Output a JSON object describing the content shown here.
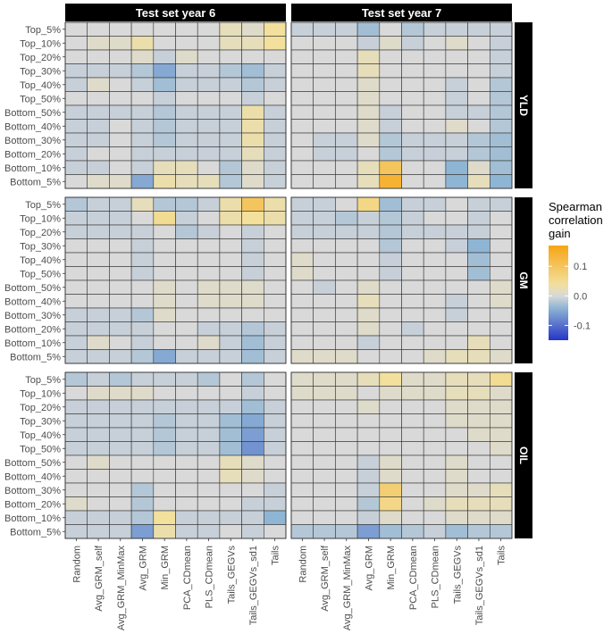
{
  "chart_data": {
    "type": "heatmap",
    "title": "",
    "columns": [
      "Test set year 6",
      "Test set year 7"
    ],
    "rows": [
      "YLD",
      "GM",
      "OIL"
    ],
    "x_categories": [
      "Random",
      "Avg_GRM_self",
      "Avg_GRM_MinMax",
      "Avg_GRM",
      "Min_GRM",
      "PCA_CDmean",
      "PLS_CDmean",
      "Tails_GEGVs",
      "Tails_GEGVs_sd1",
      "Tails"
    ],
    "y_categories": [
      "Top_5%",
      "Top_10%",
      "Top_20%",
      "Top_30%",
      "Top_40%",
      "Top_50%",
      "Bottom_50%",
      "Bottom_40%",
      "Bottom_30%",
      "Bottom_20%",
      "Bottom_10%",
      "Bottom_5%"
    ],
    "legend": {
      "title_lines": [
        "Spearman",
        "correlation",
        "gain"
      ],
      "ticks": [
        "0.1",
        "0.0",
        "-0.1"
      ],
      "range": [
        -0.15,
        0.17
      ],
      "colors": {
        "low": "#2535c7",
        "mid_low": "#8fb5d4",
        "mid": "#d9d9d9",
        "mid_high": "#f2e09c",
        "high": "#f7a514"
      }
    },
    "panels": [
      {
        "column": "Test set year 6",
        "row": "YLD",
        "values": [
          [
            0.0,
            0.0,
            0.0,
            0.0,
            0.0,
            0.0,
            0.0,
            0.02,
            0.01,
            0.04
          ],
          [
            0.0,
            0.01,
            0.01,
            0.03,
            0.0,
            0.0,
            0.0,
            0.02,
            0.02,
            0.04
          ],
          [
            0.0,
            0.0,
            0.0,
            0.01,
            -0.01,
            0.01,
            0.0,
            0.0,
            0.0,
            0.0
          ],
          [
            -0.01,
            -0.01,
            -0.01,
            -0.02,
            -0.05,
            -0.01,
            -0.01,
            -0.02,
            -0.03,
            -0.01
          ],
          [
            -0.01,
            0.01,
            0.0,
            -0.01,
            -0.03,
            -0.01,
            -0.01,
            -0.01,
            -0.02,
            -0.01
          ],
          [
            0.0,
            0.0,
            0.0,
            0.0,
            -0.01,
            0.0,
            0.0,
            0.0,
            -0.01,
            0.0
          ],
          [
            -0.01,
            -0.01,
            -0.01,
            -0.01,
            -0.02,
            -0.01,
            -0.01,
            -0.01,
            0.03,
            -0.01
          ],
          [
            -0.01,
            -0.01,
            0.0,
            -0.01,
            -0.02,
            -0.01,
            -0.01,
            -0.01,
            0.03,
            -0.01
          ],
          [
            -0.01,
            -0.01,
            0.0,
            -0.01,
            -0.02,
            -0.01,
            -0.01,
            -0.01,
            0.03,
            -0.01
          ],
          [
            -0.01,
            0.0,
            0.0,
            -0.01,
            -0.01,
            -0.01,
            -0.01,
            -0.01,
            0.02,
            -0.01
          ],
          [
            -0.01,
            -0.01,
            0.0,
            -0.01,
            0.02,
            0.02,
            0.0,
            -0.02,
            0.01,
            -0.01
          ],
          [
            0.0,
            0.01,
            0.01,
            -0.05,
            0.03,
            0.02,
            0.02,
            -0.02,
            0.01,
            -0.01
          ]
        ]
      },
      {
        "column": "Test set year 7",
        "row": "YLD",
        "values": [
          [
            -0.01,
            -0.01,
            -0.01,
            -0.03,
            0.0,
            -0.02,
            -0.01,
            -0.01,
            -0.01,
            -0.01
          ],
          [
            0.0,
            0.0,
            0.0,
            -0.01,
            0.01,
            -0.01,
            0.0,
            0.01,
            0.0,
            -0.01
          ],
          [
            0.0,
            0.0,
            0.0,
            0.02,
            0.0,
            0.0,
            0.0,
            0.0,
            0.0,
            -0.01
          ],
          [
            0.0,
            0.0,
            0.0,
            0.02,
            0.0,
            0.0,
            0.0,
            0.0,
            0.0,
            -0.01
          ],
          [
            0.0,
            0.0,
            0.0,
            0.01,
            0.0,
            0.0,
            0.0,
            -0.01,
            0.0,
            -0.02
          ],
          [
            0.0,
            0.0,
            0.0,
            0.01,
            0.0,
            0.0,
            0.0,
            -0.01,
            0.0,
            -0.02
          ],
          [
            0.0,
            0.0,
            0.0,
            0.01,
            -0.01,
            0.0,
            0.0,
            -0.01,
            -0.01,
            -0.02
          ],
          [
            0.0,
            0.0,
            0.0,
            0.01,
            -0.01,
            0.0,
            0.0,
            0.01,
            0.0,
            -0.02
          ],
          [
            0.0,
            -0.01,
            -0.01,
            0.01,
            -0.02,
            -0.01,
            -0.01,
            -0.01,
            -0.02,
            -0.03
          ],
          [
            0.0,
            -0.01,
            -0.01,
            0.0,
            -0.02,
            -0.01,
            -0.01,
            -0.01,
            -0.02,
            -0.03
          ],
          [
            0.0,
            0.0,
            0.0,
            0.02,
            0.1,
            0.0,
            0.0,
            -0.04,
            0.01,
            -0.03
          ],
          [
            0.0,
            0.0,
            0.0,
            0.02,
            0.14,
            0.0,
            0.0,
            -0.04,
            0.02,
            -0.04
          ]
        ]
      },
      {
        "column": "Test set year 6",
        "row": "GM",
        "values": [
          [
            -0.02,
            -0.01,
            -0.01,
            0.02,
            -0.02,
            -0.02,
            -0.01,
            0.03,
            0.1,
            0.03
          ],
          [
            -0.01,
            -0.01,
            -0.01,
            0.0,
            0.05,
            -0.01,
            0.0,
            0.03,
            0.04,
            0.03
          ],
          [
            -0.01,
            -0.01,
            -0.01,
            -0.01,
            0.0,
            -0.02,
            -0.01,
            0.0,
            -0.01,
            0.0
          ],
          [
            0.0,
            0.0,
            0.0,
            -0.01,
            0.0,
            0.0,
            0.0,
            0.0,
            -0.01,
            0.0
          ],
          [
            0.0,
            0.0,
            0.0,
            -0.01,
            0.0,
            0.0,
            0.0,
            0.0,
            -0.01,
            0.0
          ],
          [
            0.0,
            0.0,
            0.0,
            -0.01,
            0.0,
            0.0,
            0.0,
            0.0,
            -0.01,
            0.0
          ],
          [
            0.0,
            0.0,
            0.0,
            0.0,
            0.01,
            0.0,
            0.01,
            0.01,
            0.01,
            0.0
          ],
          [
            0.0,
            0.0,
            0.0,
            0.0,
            0.01,
            0.0,
            0.01,
            0.01,
            0.01,
            0.0
          ],
          [
            -0.01,
            -0.01,
            -0.01,
            -0.02,
            0.01,
            0.0,
            0.0,
            0.0,
            0.0,
            0.0
          ],
          [
            -0.01,
            -0.01,
            -0.01,
            -0.01,
            0.0,
            0.0,
            -0.01,
            -0.01,
            -0.02,
            -0.01
          ],
          [
            -0.01,
            0.01,
            0.0,
            -0.01,
            0.0,
            0.0,
            0.01,
            -0.01,
            -0.03,
            -0.01
          ],
          [
            -0.01,
            -0.01,
            -0.01,
            -0.02,
            -0.05,
            -0.01,
            -0.01,
            -0.01,
            -0.03,
            -0.01
          ]
        ]
      },
      {
        "column": "Test set year 7",
        "row": "GM",
        "values": [
          [
            -0.01,
            -0.01,
            0.0,
            0.06,
            -0.03,
            -0.01,
            -0.01,
            0.0,
            -0.01,
            -0.01
          ],
          [
            -0.01,
            -0.01,
            -0.02,
            -0.01,
            -0.02,
            -0.01,
            0.0,
            0.0,
            -0.01,
            0.0
          ],
          [
            -0.01,
            -0.01,
            -0.01,
            -0.01,
            -0.02,
            -0.01,
            -0.01,
            -0.01,
            -0.01,
            0.0
          ],
          [
            0.0,
            0.0,
            0.0,
            0.0,
            -0.02,
            0.0,
            0.0,
            -0.01,
            -0.04,
            0.0
          ],
          [
            0.01,
            0.0,
            0.0,
            0.0,
            -0.01,
            0.0,
            0.0,
            0.0,
            -0.03,
            0.0
          ],
          [
            0.01,
            0.0,
            0.0,
            0.0,
            -0.01,
            0.0,
            0.0,
            0.0,
            -0.03,
            0.0
          ],
          [
            0.0,
            -0.01,
            0.0,
            0.01,
            0.0,
            0.0,
            0.0,
            0.0,
            0.0,
            0.01
          ],
          [
            0.0,
            0.0,
            0.0,
            0.02,
            0.0,
            0.0,
            0.0,
            -0.01,
            0.0,
            0.01
          ],
          [
            0.0,
            0.0,
            0.0,
            0.01,
            0.0,
            0.0,
            0.0,
            -0.01,
            0.0,
            0.0
          ],
          [
            0.0,
            0.0,
            0.0,
            0.01,
            0.0,
            -0.01,
            0.0,
            0.0,
            0.0,
            0.0
          ],
          [
            0.0,
            0.0,
            0.0,
            -0.01,
            0.0,
            0.0,
            0.0,
            0.0,
            0.02,
            0.0
          ],
          [
            0.01,
            0.01,
            0.01,
            0.0,
            0.0,
            0.0,
            0.01,
            0.02,
            0.02,
            0.01
          ]
        ]
      },
      {
        "column": "Test set year 6",
        "row": "OIL",
        "values": [
          [
            -0.02,
            -0.01,
            -0.02,
            -0.01,
            -0.01,
            -0.01,
            -0.02,
            0.0,
            -0.02,
            0.0
          ],
          [
            0.0,
            0.01,
            0.01,
            0.01,
            0.0,
            0.0,
            0.0,
            0.0,
            -0.01,
            0.0
          ],
          [
            -0.01,
            -0.01,
            -0.01,
            -0.01,
            -0.01,
            -0.01,
            -0.01,
            -0.01,
            -0.03,
            -0.01
          ],
          [
            -0.01,
            -0.01,
            -0.01,
            -0.01,
            -0.02,
            -0.01,
            -0.01,
            -0.03,
            -0.05,
            -0.01
          ],
          [
            -0.01,
            -0.01,
            -0.01,
            -0.01,
            -0.02,
            -0.01,
            -0.01,
            -0.03,
            -0.06,
            -0.01
          ],
          [
            -0.01,
            -0.01,
            -0.01,
            -0.01,
            -0.02,
            -0.01,
            -0.01,
            -0.03,
            -0.07,
            -0.01
          ],
          [
            0.0,
            0.01,
            0.0,
            0.0,
            0.0,
            0.0,
            0.0,
            0.02,
            0.01,
            0.0
          ],
          [
            0.0,
            0.0,
            0.0,
            0.0,
            0.0,
            0.0,
            0.0,
            0.02,
            0.01,
            0.0
          ],
          [
            0.0,
            0.0,
            0.0,
            -0.02,
            0.0,
            0.0,
            0.0,
            0.0,
            0.0,
            -0.01
          ],
          [
            0.01,
            0.0,
            0.0,
            -0.02,
            0.0,
            0.0,
            0.0,
            0.0,
            -0.01,
            -0.01
          ],
          [
            -0.01,
            -0.01,
            -0.01,
            -0.02,
            0.04,
            -0.01,
            -0.01,
            -0.01,
            -0.01,
            -0.04
          ],
          [
            -0.01,
            -0.01,
            -0.01,
            -0.06,
            0.03,
            -0.01,
            -0.01,
            0.0,
            -0.01,
            0.0
          ]
        ]
      },
      {
        "column": "Test set year 7",
        "row": "OIL",
        "values": [
          [
            0.01,
            0.01,
            0.01,
            0.02,
            0.04,
            0.01,
            0.01,
            0.02,
            0.02,
            0.05
          ],
          [
            0.01,
            0.01,
            0.01,
            0.0,
            0.01,
            0.01,
            0.01,
            0.02,
            0.02,
            0.01
          ],
          [
            0.0,
            0.0,
            0.0,
            0.01,
            0.0,
            0.0,
            0.0,
            0.01,
            0.01,
            0.01
          ],
          [
            0.0,
            0.0,
            0.0,
            0.0,
            0.0,
            0.0,
            0.0,
            0.01,
            0.01,
            0.01
          ],
          [
            0.0,
            0.0,
            0.0,
            0.0,
            0.0,
            0.0,
            0.0,
            0.0,
            0.01,
            0.01
          ],
          [
            0.0,
            0.0,
            0.0,
            0.0,
            0.0,
            0.0,
            0.0,
            0.0,
            0.0,
            0.01
          ],
          [
            0.0,
            0.0,
            0.0,
            -0.01,
            0.01,
            0.0,
            0.0,
            0.01,
            0.0,
            0.0
          ],
          [
            0.0,
            0.0,
            0.0,
            -0.01,
            0.01,
            0.0,
            0.0,
            0.01,
            0.0,
            0.0
          ],
          [
            0.0,
            0.0,
            0.0,
            -0.01,
            0.08,
            0.0,
            0.0,
            0.01,
            0.01,
            0.02
          ],
          [
            0.0,
            0.0,
            0.0,
            -0.02,
            0.06,
            0.0,
            0.01,
            0.02,
            0.02,
            0.02
          ],
          [
            0.0,
            0.0,
            0.0,
            -0.01,
            0.01,
            0.0,
            0.0,
            0.01,
            0.01,
            0.01
          ],
          [
            -0.02,
            -0.02,
            -0.02,
            -0.06,
            -0.03,
            -0.02,
            -0.01,
            -0.03,
            -0.02,
            -0.02
          ]
        ]
      }
    ]
  }
}
